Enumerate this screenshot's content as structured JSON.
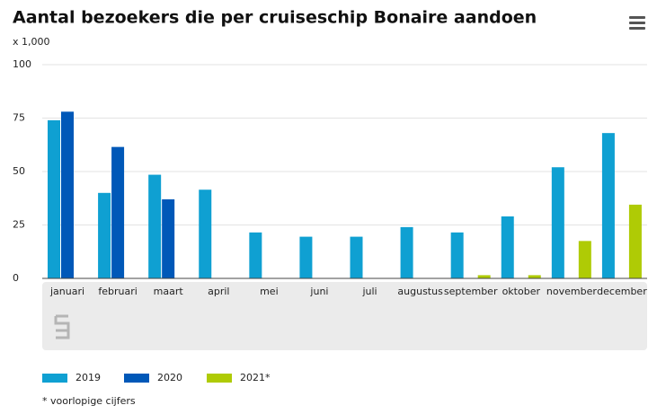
{
  "chart_data": {
    "type": "bar",
    "title": "Aantal bezoekers die per cruiseschip Bonaire aandoen",
    "subtitle": "x 1,000",
    "categories": [
      "januari",
      "februari",
      "maart",
      "april",
      "mei",
      "juni",
      "juli",
      "augustus",
      "september",
      "oktober",
      "november",
      "december"
    ],
    "series": [
      {
        "name": "2019",
        "color": "#0fa0d2",
        "values": [
          74,
          40,
          48.5,
          41.5,
          21.5,
          19.5,
          19.5,
          24,
          21.5,
          29,
          52,
          68
        ]
      },
      {
        "name": "2020",
        "color": "#0058b8",
        "values": [
          78,
          61.5,
          37,
          null,
          null,
          null,
          null,
          null,
          null,
          null,
          null,
          null
        ]
      },
      {
        "name": "2021*",
        "color": "#afcb05",
        "values": [
          null,
          null,
          null,
          null,
          null,
          null,
          null,
          null,
          1.5,
          1.5,
          17.5,
          34.5
        ]
      }
    ],
    "ylim": [
      0,
      100
    ],
    "yticks": [
      0,
      25,
      50,
      75,
      100
    ],
    "grid": true,
    "footnote": "* voorlopige cijfers"
  }
}
